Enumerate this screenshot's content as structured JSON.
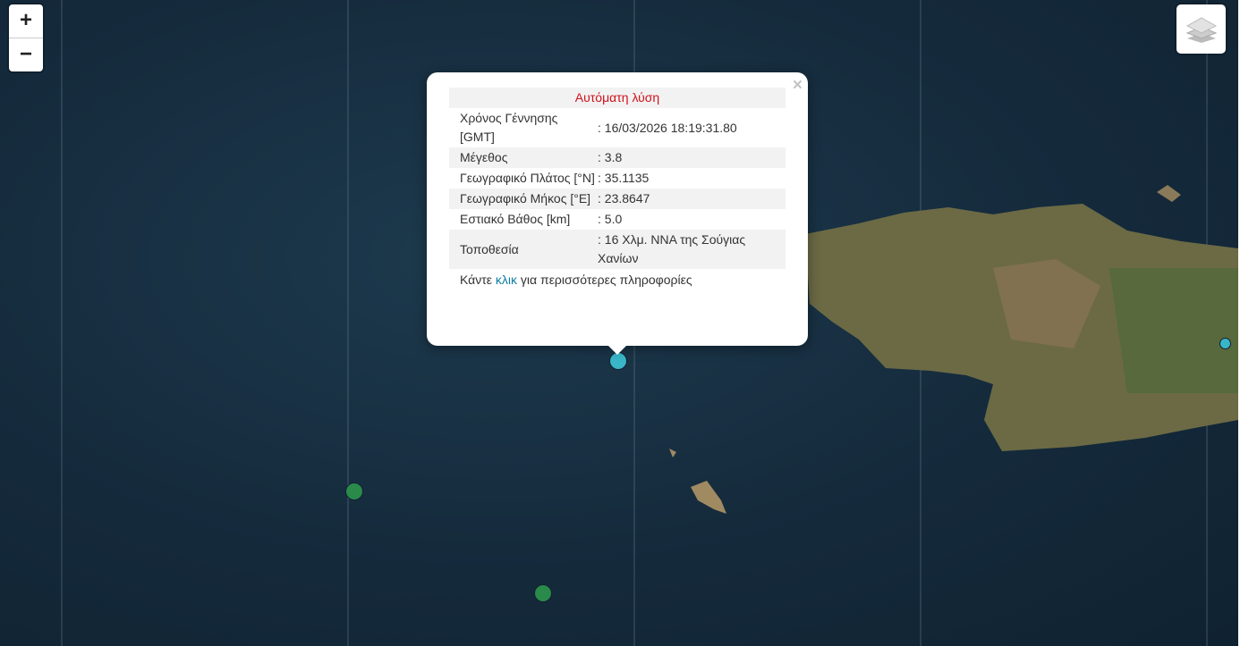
{
  "zoom": {
    "in": "+",
    "out": "−"
  },
  "layers_icon": "layers-icon",
  "colors": {
    "selected_marker": "#3ab6c9",
    "green_marker": "#2a8a4a",
    "title": "#d0111b",
    "link": "#0e7fa6"
  },
  "popup": {
    "title": "Αυτόματη λύση",
    "close": "×",
    "rows": [
      {
        "label": "Χρόνος Γέννησης [GMT]",
        "value": ": 16/03/2026 18:19:31.80"
      },
      {
        "label": "Μέγεθος",
        "value": ": 3.8"
      },
      {
        "label": "Γεωγραφικό Πλάτος [°N]",
        "value": ": 35.1135"
      },
      {
        "label": "Γεωγραφικό Μήκος [°E]",
        "value": ": 23.8647"
      },
      {
        "label": "Εστιακό Βάθος [km]",
        "value": ": 5.0"
      },
      {
        "label": "Τοποθεσία",
        "value": ": 16 Χλμ. ΝΝΑ της Σούγιας Χανίων"
      }
    ],
    "more_prefix": "Κάντε ",
    "more_link": "κλικ",
    "more_suffix": " για περισσότερες πληροφορίες"
  }
}
